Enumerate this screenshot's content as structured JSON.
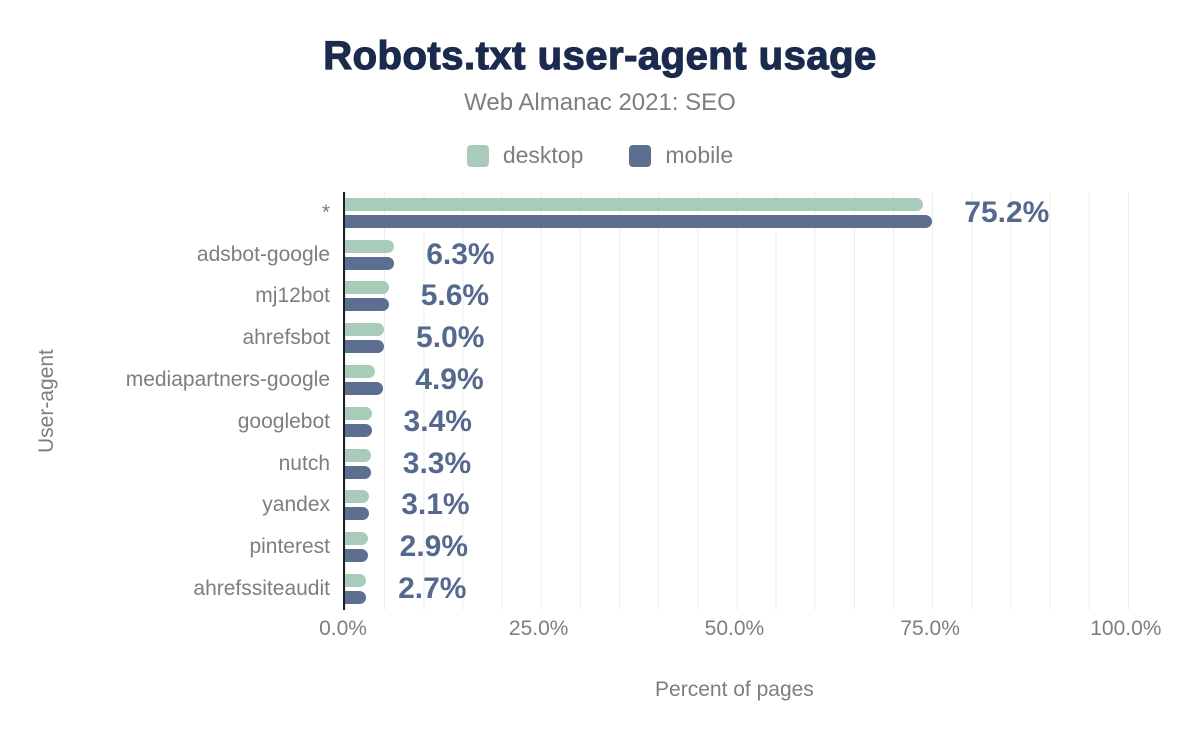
{
  "page": {
    "title": "Robots.txt user-agent usage",
    "subtitle": "Web Almanac 2021: SEO"
  },
  "legend": [
    {
      "label": "desktop",
      "color": "#a9cbb9"
    },
    {
      "label": "mobile",
      "color": "#5c6f90"
    }
  ],
  "colors": {
    "background": "#ffffff",
    "title": "#1b2b4e",
    "muted_text": "#7e7e7e",
    "value_label": "#55698f",
    "axis_line": "#1f1f1f",
    "gridline": "#ededed",
    "desktop": "#a9cbb9",
    "mobile": "#5c6f90"
  },
  "chart_data": {
    "type": "bar",
    "orientation": "horizontal",
    "title": "Robots.txt user-agent usage",
    "subtitle": "Web Almanac 2021: SEO",
    "xlabel": "Percent of pages",
    "ylabel": "User-agent",
    "categories": [
      "*",
      "adsbot-google",
      "mj12bot",
      "ahrefsbot",
      "mediapartners-google",
      "googlebot",
      "nutch",
      "yandex",
      "pinterest",
      "ahrefssiteaudit"
    ],
    "series": [
      {
        "name": "desktop",
        "color": "#a9cbb9",
        "values": [
          74.0,
          6.3,
          5.6,
          5.0,
          3.9,
          3.4,
          3.3,
          3.1,
          2.9,
          2.7
        ]
      },
      {
        "name": "mobile",
        "color": "#5c6f90",
        "values": [
          75.2,
          6.3,
          5.6,
          5.0,
          4.9,
          3.4,
          3.3,
          3.1,
          2.9,
          2.7
        ]
      }
    ],
    "desktop_values_estimated_from_bar_lengths": true,
    "data_labels": [
      "75.2%",
      "6.3%",
      "5.6%",
      "5.0%",
      "4.9%",
      "3.4%",
      "3.3%",
      "3.1%",
      "2.9%",
      "2.7%"
    ],
    "x_ticks": [
      {
        "label": "0.0%",
        "value": 0
      },
      {
        "label": "25.0%",
        "value": 25
      },
      {
        "label": "50.0%",
        "value": 50
      },
      {
        "label": "75.0%",
        "value": 75
      },
      {
        "label": "100.0%",
        "value": 100
      }
    ],
    "xlim": [
      0,
      105
    ],
    "grid": {
      "vertical_minor_every_percent": 5,
      "color": "#ededed"
    },
    "legend_position": "top"
  }
}
